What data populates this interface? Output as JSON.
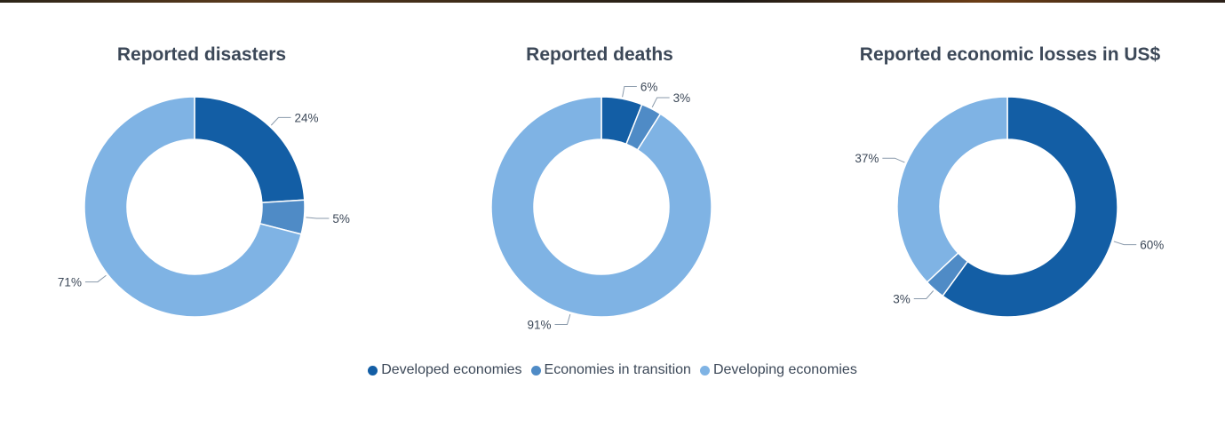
{
  "colors": {
    "developed": "#135ea5",
    "transition": "#4f8bc6",
    "developing": "#7fb3e4"
  },
  "chart_data": [
    {
      "type": "pie",
      "title": "Reported disasters",
      "categories": [
        "Developed economies",
        "Economies in transition",
        "Developing economies"
      ],
      "values": [
        24,
        5,
        71
      ],
      "labels": [
        "24%",
        "5%",
        "71%"
      ]
    },
    {
      "type": "pie",
      "title": "Reported deaths",
      "categories": [
        "Developed economies",
        "Economies in transition",
        "Developing economies"
      ],
      "values": [
        6,
        3,
        91
      ],
      "labels": [
        "6%",
        "3%",
        "91%"
      ]
    },
    {
      "type": "pie",
      "title": "Reported economic losses in US$",
      "categories": [
        "Developed economies",
        "Economies in transition",
        "Developing economies"
      ],
      "values": [
        60,
        3,
        37
      ],
      "labels": [
        "60%",
        "3%",
        "37%"
      ]
    }
  ],
  "legend": {
    "position": "bottom",
    "items": [
      "Developed economies",
      "Economies in transition",
      "Developing economies"
    ]
  }
}
